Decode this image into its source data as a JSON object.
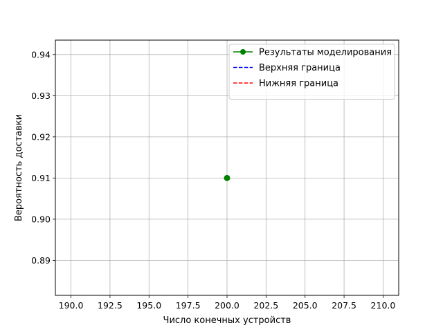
{
  "chart_data": {
    "type": "line",
    "xlabel": "Число конечных устройств",
    "ylabel": "Вероятность доставки",
    "xlim": [
      189.0,
      211.0
    ],
    "ylim": [
      0.8815,
      0.9435
    ],
    "xticks": [
      190.0,
      192.5,
      195.0,
      197.5,
      200.0,
      202.5,
      205.0,
      207.5,
      210.0
    ],
    "xtick_labels": [
      "190.0",
      "192.5",
      "195.0",
      "197.5",
      "200.0",
      "202.5",
      "205.0",
      "207.5",
      "210.0"
    ],
    "yticks": [
      0.89,
      0.9,
      0.91,
      0.92,
      0.93,
      0.94
    ],
    "ytick_labels": [
      "0.89",
      "0.90",
      "0.91",
      "0.92",
      "0.93",
      "0.94"
    ],
    "grid": true,
    "legend_position": "top-right",
    "series": [
      {
        "name": "Результаты моделирования",
        "color": "#008000",
        "style": "solid",
        "marker": "circle",
        "x": [
          200
        ],
        "y": [
          0.91
        ]
      },
      {
        "name": "Верхняя граница",
        "color": "#0000ff",
        "style": "dashed",
        "marker": "none",
        "x": [],
        "y": []
      },
      {
        "name": "Нижняя граница",
        "color": "#ff0000",
        "style": "dashed",
        "marker": "none",
        "x": [],
        "y": []
      }
    ]
  }
}
